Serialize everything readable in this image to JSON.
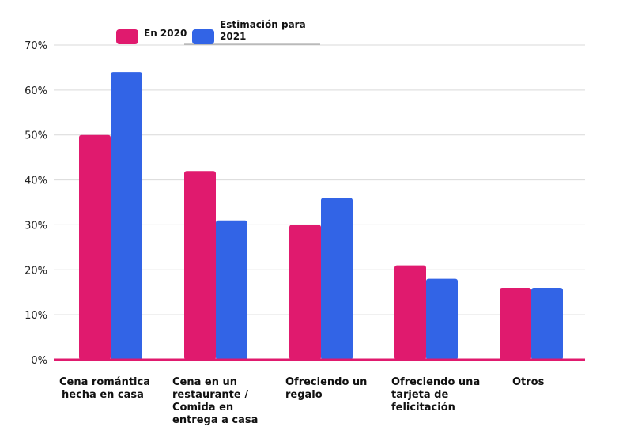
{
  "chart_data": {
    "type": "bar",
    "categories": [
      [
        "Cena romántica",
        "hecha en casa"
      ],
      [
        "Cena en un",
        "restaurante /",
        "Comida en",
        "entrega a casa"
      ],
      [
        "Ofreciendo un",
        "regalo"
      ],
      [
        "Ofreciendo una",
        "tarjeta de",
        "felicitación"
      ],
      [
        "Otros"
      ]
    ],
    "series": [
      {
        "name": "En 2020",
        "color": "#e01a6e",
        "values": [
          50,
          42,
          30,
          21,
          16
        ]
      },
      {
        "name": [
          "Estimación para",
          "2021"
        ],
        "color": "#3264e6",
        "values": [
          64,
          31,
          36,
          18,
          16
        ]
      }
    ],
    "yticks": [
      "0%",
      "10%",
      "20%",
      "30%",
      "40%",
      "50%",
      "60%",
      "70%"
    ],
    "ylim": [
      0,
      70
    ],
    "grid": true,
    "legend": "top-left",
    "baseline_color": "#e01a6e"
  }
}
